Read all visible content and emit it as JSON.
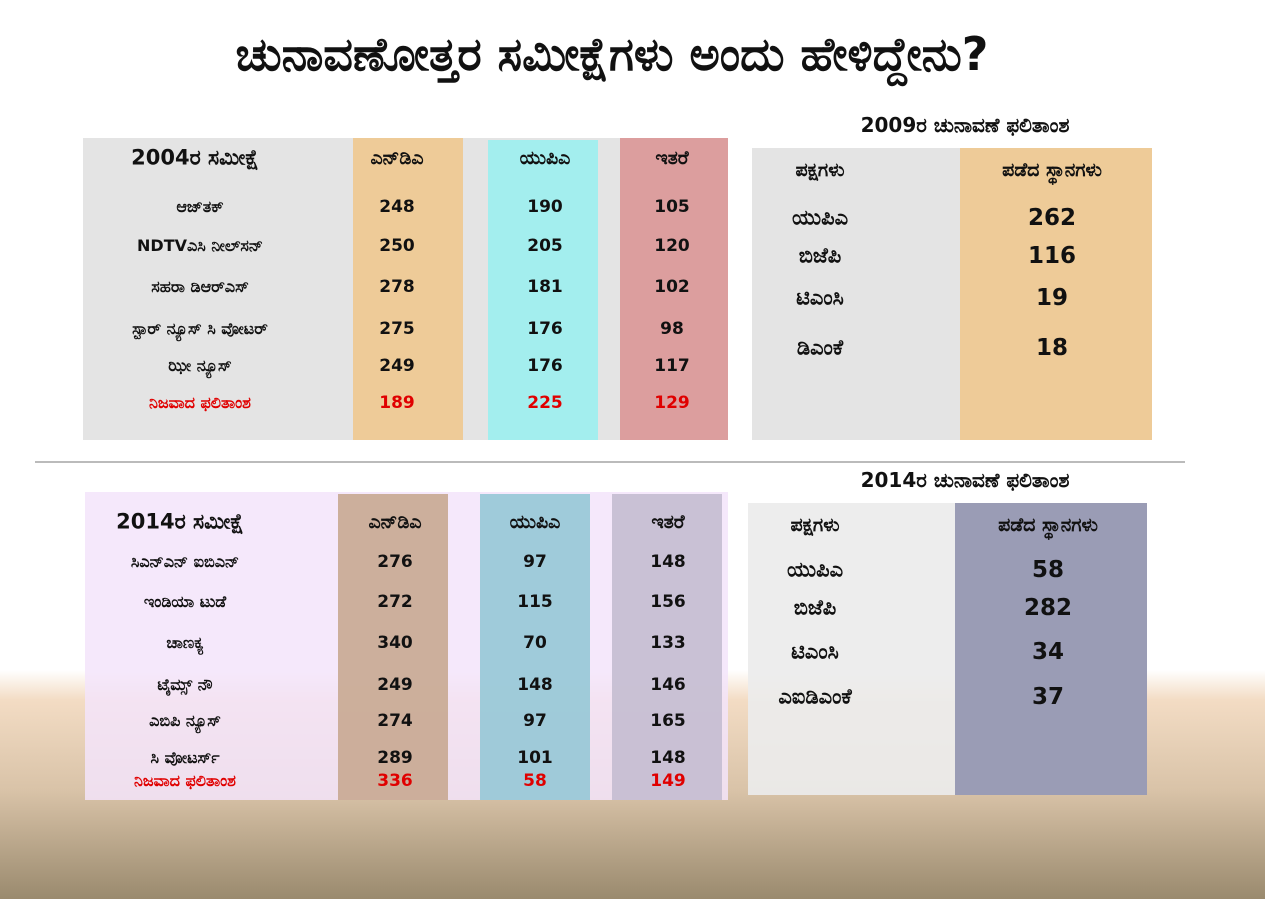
{
  "title": "ಚುನಾವಣೋತ್ತರ ಸಮೀಕ್ಷೆಗಳು ಅಂದು ಹೇಳಿದ್ದೇನು?",
  "survey_2004": {
    "header": [
      "2004ರ  ಸಮೀಕ್ಷೆ",
      "ಎನ್‌ಡಿಎ",
      "ಯುಪಿಎ",
      "ಇತರೆ"
    ],
    "rows": [
      [
        "ಆಜ್‌ತಕ್",
        248,
        190,
        105
      ],
      [
        "NDTVಎಸಿ ನೀಲ್‌ಸನ್",
        250,
        205,
        120
      ],
      [
        "ಸಹರಾ ಡಿಆರ್‌ಎಸ್",
        278,
        181,
        102
      ],
      [
        "ಸ್ಟಾರ್ ನ್ಯೂಸ್ ಸಿ ವೋಟರ್",
        275,
        176,
        98
      ],
      [
        "ಝೀ ನ್ಯೂಸ್",
        249,
        176,
        117
      ],
      [
        "ನಿಜವಾದ ಫಲಿತಾಂಶ",
        189,
        225,
        129
      ]
    ]
  },
  "result_2009": {
    "title": "2009ರ ಚುನಾವಣೆ ಫಲಿತಾಂಶ",
    "header": [
      "ಪಕ್ಷಗಳು",
      "ಪಡೆದ ಸ್ಥಾನಗಳು"
    ],
    "rows": [
      [
        "ಯುಪಿಎ",
        262
      ],
      [
        "ಬಿಜೆಪಿ",
        116
      ],
      [
        "ಟಿಎಂಸಿ",
        19
      ],
      [
        "ಡಿಎಂಕೆ",
        18
      ]
    ]
  },
  "survey_2014": {
    "header": [
      "2014ರ  ಸಮೀಕ್ಷೆ",
      "ಎನ್‌ಡಿಎ",
      "ಯುಪಿಎ",
      "ಇತರೆ"
    ],
    "rows": [
      [
        "ಸಿಎನ್‌ಎನ್ ಐಬಿಎನ್",
        276,
        97,
        148
      ],
      [
        "ಇಂಡಿಯಾ ಟುಡೆ",
        272,
        115,
        156
      ],
      [
        "ಚಾಣಕ್ಯ",
        340,
        70,
        133
      ],
      [
        "ಟೈಮ್ಸ್ ನೌ",
        249,
        148,
        146
      ],
      [
        "ಎಬಿಪಿ ನ್ಯೂಸ್",
        274,
        97,
        165
      ],
      [
        "ಸಿ ವೋಟರ್ಸ್",
        289,
        101,
        148
      ],
      [
        "ನಿಜವಾದ ಫಲಿತಾಂಶ",
        336,
        58,
        149
      ]
    ]
  },
  "result_2014": {
    "title": "2014ರ ಚುನಾವಣೆ ಫಲಿತಾಂಶ",
    "header": [
      "ಪಕ್ಷಗಳು",
      "ಪಡೆದ ಸ್ಥಾನಗಳು"
    ],
    "rows": [
      [
        "ಯುಪಿಎ",
        58
      ],
      [
        "ಬಿಜೆಪಿ",
        282
      ],
      [
        "ಟಿಎಂಸಿ",
        34
      ],
      [
        "ಎಐಡಿಎಂಕೆ",
        37
      ]
    ]
  }
}
